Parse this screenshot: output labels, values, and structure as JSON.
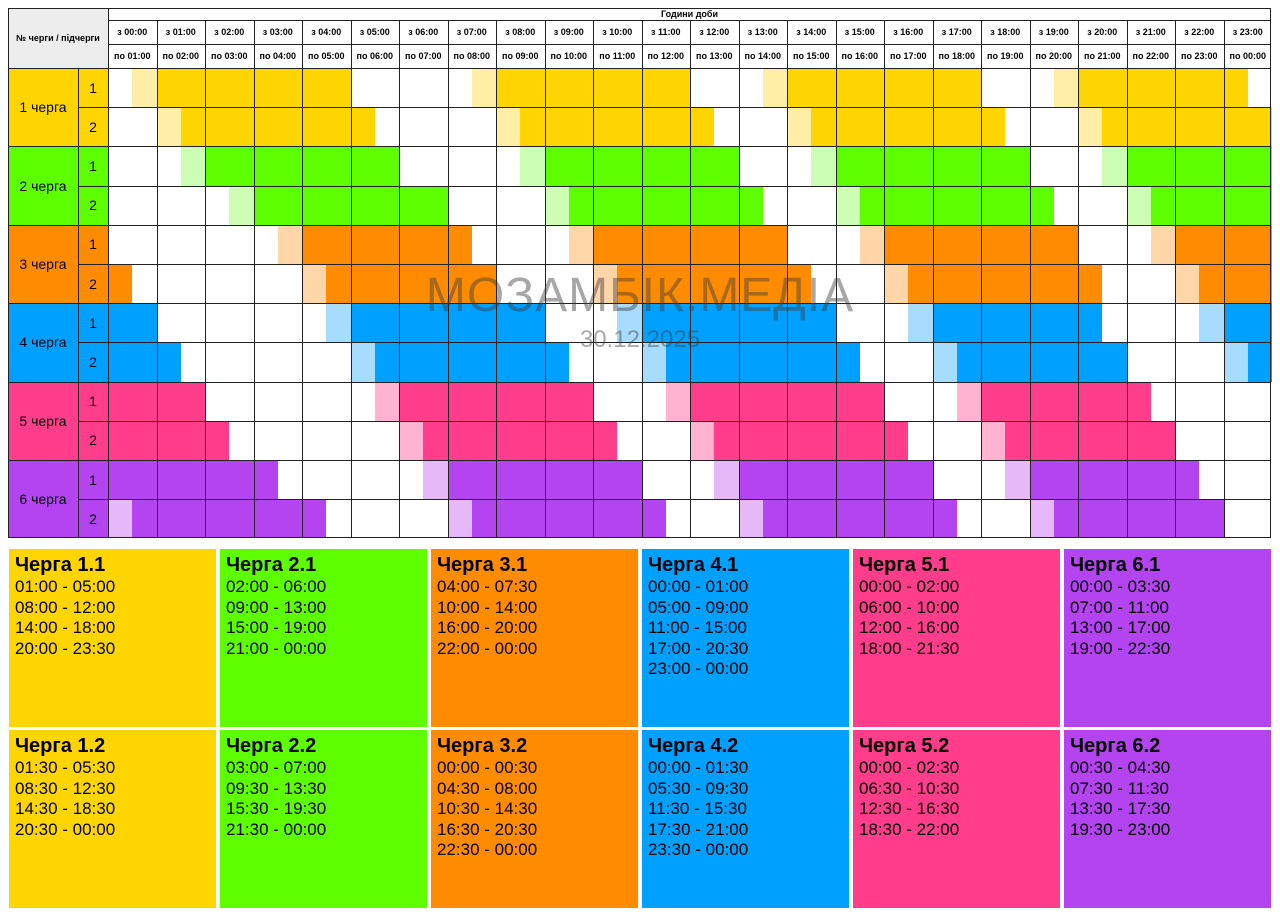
{
  "table": {
    "corner_label": "№ черги / підчерги",
    "hours_label": "Години доби",
    "from_labels": [
      "з 00:00",
      "з 01:00",
      "з 02:00",
      "з 03:00",
      "з 04:00",
      "з 05:00",
      "з 06:00",
      "з 07:00",
      "з 08:00",
      "з 09:00",
      "з 10:00",
      "з 11:00",
      "з 12:00",
      "з 13:00",
      "з 14:00",
      "з 15:00",
      "з 16:00",
      "з 17:00",
      "з 18:00",
      "з 19:00",
      "з 20:00",
      "з 21:00",
      "з 22:00",
      "з 23:00"
    ],
    "to_labels": [
      "по 01:00",
      "по 02:00",
      "по 03:00",
      "по 04:00",
      "по 05:00",
      "по 06:00",
      "по 07:00",
      "по 08:00",
      "по 09:00",
      "по 10:00",
      "по 11:00",
      "по 12:00",
      "по 13:00",
      "по 14:00",
      "по 15:00",
      "по 16:00",
      "по 17:00",
      "по 18:00",
      "по 19:00",
      "по 20:00",
      "по 21:00",
      "по 22:00",
      "по 23:00",
      "по 00:00"
    ]
  },
  "groups": [
    {
      "label": "1 черга",
      "color": "#FFD500",
      "light": "#FFEFA6",
      "subs": [
        {
          "label": "1",
          "slots": [
            [
              2,
              10
            ],
            [
              16,
              24
            ],
            [
              28,
              36
            ],
            [
              40,
              47
            ]
          ]
        },
        {
          "label": "2",
          "slots": [
            [
              3,
              11
            ],
            [
              17,
              25
            ],
            [
              29,
              37
            ],
            [
              41,
              48
            ]
          ]
        }
      ]
    },
    {
      "label": "2 черга",
      "color": "#5DFF00",
      "light": "#CCFFB3",
      "subs": [
        {
          "label": "1",
          "slots": [
            [
              4,
              12
            ],
            [
              18,
              26
            ],
            [
              30,
              38
            ],
            [
              42,
              48
            ]
          ]
        },
        {
          "label": "2",
          "slots": [
            [
              6,
              14
            ],
            [
              19,
              27
            ],
            [
              31,
              39
            ],
            [
              43,
              48
            ]
          ]
        }
      ]
    },
    {
      "label": "3 черга",
      "color": "#FF8C00",
      "light": "#FFD6A8",
      "subs": [
        {
          "label": "1",
          "slots": [
            [
              8,
              15
            ],
            [
              20,
              28
            ],
            [
              32,
              40
            ],
            [
              44,
              48
            ]
          ]
        },
        {
          "label": "2",
          "slots": [
            [
              0,
              1
            ],
            [
              9,
              16
            ],
            [
              21,
              29
            ],
            [
              33,
              41
            ],
            [
              45,
              48
            ]
          ]
        }
      ]
    },
    {
      "label": "4 черга",
      "color": "#00A0FF",
      "light": "#A8DCFF",
      "subs": [
        {
          "label": "1",
          "slots": [
            [
              0,
              2
            ],
            [
              10,
              18
            ],
            [
              22,
              30
            ],
            [
              34,
              41
            ],
            [
              46,
              48
            ]
          ]
        },
        {
          "label": "2",
          "slots": [
            [
              0,
              3
            ],
            [
              11,
              19
            ],
            [
              23,
              31
            ],
            [
              35,
              42
            ],
            [
              47,
              48
            ]
          ]
        }
      ]
    },
    {
      "label": "5 черга",
      "color": "#FF3D8B",
      "light": "#FFB3D1",
      "subs": [
        {
          "label": "1",
          "slots": [
            [
              0,
              4
            ],
            [
              12,
              20
            ],
            [
              24,
              32
            ],
            [
              36,
              43
            ]
          ]
        },
        {
          "label": "2",
          "slots": [
            [
              0,
              5
            ],
            [
              13,
              21
            ],
            [
              25,
              33
            ],
            [
              37,
              44
            ]
          ]
        }
      ]
    },
    {
      "label": "6 черга",
      "color": "#B344F0",
      "light": "#E6B8F7",
      "subs": [
        {
          "label": "1",
          "slots": [
            [
              0,
              7
            ],
            [
              14,
              22
            ],
            [
              26,
              34
            ],
            [
              38,
              45
            ]
          ]
        },
        {
          "label": "2",
          "slots": [
            [
              1,
              9
            ],
            [
              15,
              23
            ],
            [
              27,
              35
            ],
            [
              39,
              46
            ]
          ]
        }
      ]
    }
  ],
  "watermark": {
    "brand": "МОЗАМБІК.МЕДІА",
    "date": "30.12.2025"
  },
  "cards": [
    {
      "title": "Черга 1.1",
      "color": "#FFD500",
      "ranges": [
        "01:00 - 05:00",
        "08:00 - 12:00",
        "14:00 - 18:00",
        "20:00 - 23:30"
      ]
    },
    {
      "title": "Черга 2.1",
      "color": "#5DFF00",
      "ranges": [
        "02:00 - 06:00",
        "09:00 - 13:00",
        "15:00 - 19:00",
        "21:00 - 00:00"
      ]
    },
    {
      "title": "Черга 3.1",
      "color": "#FF8C00",
      "ranges": [
        "04:00 - 07:30",
        "10:00 - 14:00",
        "16:00 - 20:00",
        "22:00 - 00:00"
      ]
    },
    {
      "title": "Черга 4.1",
      "color": "#00A0FF",
      "ranges": [
        "00:00 - 01:00",
        "05:00 - 09:00",
        "11:00 - 15:00",
        "17:00 - 20:30",
        "23:00 - 00:00"
      ]
    },
    {
      "title": "Черга 5.1",
      "color": "#FF3D8B",
      "ranges": [
        "00:00 - 02:00",
        "06:00 - 10:00",
        "12:00 - 16:00",
        "18:00 - 21:30"
      ]
    },
    {
      "title": "Черга 6.1",
      "color": "#B344F0",
      "ranges": [
        "00:00 - 03:30",
        "07:00 - 11:00",
        "13:00 - 17:00",
        "19:00 - 22:30"
      ]
    },
    {
      "title": "Черга 1.2",
      "color": "#FFD500",
      "ranges": [
        "01:30 - 05:30",
        "08:30 - 12:30",
        "14:30 - 18:30",
        "20:30 - 00:00"
      ]
    },
    {
      "title": "Черга 2.2",
      "color": "#5DFF00",
      "ranges": [
        "03:00 - 07:00",
        "09:30 - 13:30",
        "15:30 - 19:30",
        "21:30 - 00:00"
      ]
    },
    {
      "title": "Черга 3.2",
      "color": "#FF8C00",
      "ranges": [
        "00:00 - 00:30",
        "04:30 - 08:00",
        "10:30 - 14:30",
        "16:30 - 20:30",
        "22:30 - 00:00"
      ]
    },
    {
      "title": "Черга 4.2",
      "color": "#00A0FF",
      "ranges": [
        "00:00 - 01:30",
        "05:30 - 09:30",
        "11:30 - 15:30",
        "17:30 - 21:00",
        "23:30 - 00:00"
      ]
    },
    {
      "title": "Черга 5.2",
      "color": "#FF3D8B",
      "ranges": [
        "00:00 - 02:30",
        "06:30 - 10:30",
        "12:30 - 16:30",
        "18:30 - 22:00"
      ]
    },
    {
      "title": "Черга 6.2",
      "color": "#B344F0",
      "ranges": [
        "00:30 - 04:30",
        "07:30 - 11:30",
        "13:30 - 17:30",
        "19:30 - 23:00"
      ]
    }
  ]
}
